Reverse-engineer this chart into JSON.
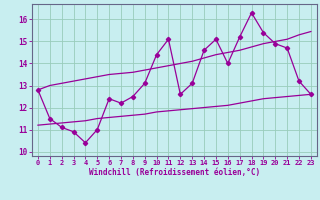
{
  "x_values": [
    0,
    1,
    2,
    3,
    4,
    5,
    6,
    7,
    8,
    9,
    10,
    11,
    12,
    13,
    14,
    15,
    16,
    17,
    18,
    19,
    20,
    21,
    22,
    23
  ],
  "y_main": [
    12.8,
    11.5,
    11.1,
    10.9,
    10.4,
    11.0,
    12.4,
    12.2,
    12.5,
    13.1,
    14.4,
    15.1,
    12.6,
    13.1,
    14.6,
    15.1,
    14.0,
    15.2,
    16.3,
    15.4,
    14.9,
    14.7,
    13.2,
    12.6
  ],
  "y_upper": [
    12.8,
    13.0,
    13.1,
    13.2,
    13.3,
    13.4,
    13.5,
    13.55,
    13.6,
    13.7,
    13.8,
    13.9,
    14.0,
    14.1,
    14.25,
    14.4,
    14.5,
    14.6,
    14.75,
    14.9,
    15.0,
    15.1,
    15.3,
    15.45
  ],
  "y_lower": [
    11.2,
    11.25,
    11.3,
    11.35,
    11.4,
    11.5,
    11.55,
    11.6,
    11.65,
    11.7,
    11.8,
    11.85,
    11.9,
    11.95,
    12.0,
    12.05,
    12.1,
    12.2,
    12.3,
    12.4,
    12.45,
    12.5,
    12.55,
    12.6
  ],
  "line_color": "#990099",
  "bg_color": "#c8eef0",
  "grid_color": "#99ccbb",
  "xlabel": "Windchill (Refroidissement éolien,°C)",
  "xlim_min": -0.5,
  "xlim_max": 23.5,
  "ylim_min": 9.8,
  "ylim_max": 16.7,
  "yticks": [
    10,
    11,
    12,
    13,
    14,
    15,
    16
  ],
  "xticks": [
    0,
    1,
    2,
    3,
    4,
    5,
    6,
    7,
    8,
    9,
    10,
    11,
    12,
    13,
    14,
    15,
    16,
    17,
    18,
    19,
    20,
    21,
    22,
    23
  ]
}
